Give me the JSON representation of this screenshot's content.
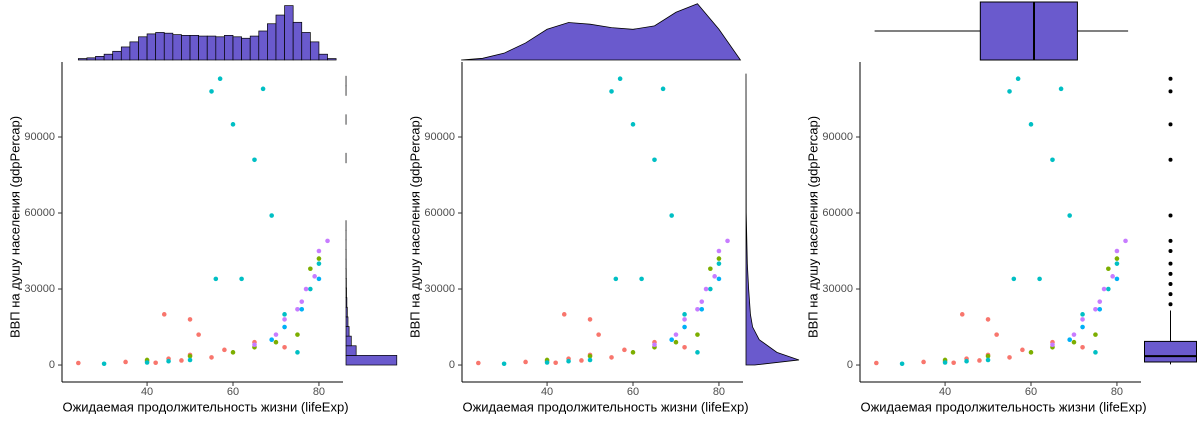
{
  "chart_data": [
    {
      "type": "scatter",
      "marginal": "histogram",
      "xlabel": "Ожидаемая продолжительность жизни (lifeExp)",
      "ylabel": "ВВП на душу населения (gdpPercap)",
      "xlim": [
        20.2,
        85.6
      ],
      "ylim": [
        -6700,
        119600
      ],
      "xticks": [
        40,
        60,
        80
      ],
      "yticks": [
        0,
        30000,
        60000,
        90000
      ],
      "series": [
        {
          "color": "#F8766D",
          "x": [
            24,
            35,
            40,
            42,
            45,
            48,
            50,
            52,
            55,
            58,
            65,
            72,
            44,
            50
          ],
          "y": [
            800,
            1200,
            1500,
            900,
            2500,
            1800,
            4000,
            12000,
            3000,
            6000,
            9000,
            7000,
            20000,
            18000
          ]
        },
        {
          "color": "#7CAE00",
          "x": [
            40,
            50,
            60,
            65,
            70,
            75,
            78,
            80
          ],
          "y": [
            2000,
            3500,
            5000,
            7000,
            9000,
            12000,
            38000,
            42000
          ]
        },
        {
          "color": "#00BFC4",
          "x": [
            30,
            40,
            45,
            55,
            57,
            60,
            65,
            67,
            69,
            56,
            62,
            72,
            78,
            50,
            75,
            80
          ],
          "y": [
            500,
            1000,
            1500,
            108000,
            113000,
            95000,
            81000,
            109000,
            59000,
            34000,
            34000,
            20000,
            30000,
            2000,
            5000,
            40000
          ]
        },
        {
          "color": "#C77CFF",
          "x": [
            65,
            70,
            72,
            75,
            77,
            79,
            80,
            82,
            76
          ],
          "y": [
            8000,
            12000,
            18000,
            22000,
            30000,
            35000,
            45000,
            49000,
            25000
          ]
        },
        {
          "color": "#00B0F6",
          "x": [
            69,
            72,
            76,
            80
          ],
          "y": [
            10000,
            15000,
            22000,
            34000
          ]
        }
      ],
      "marginal_color": "#6A5ACD",
      "top": {
        "bins": [
          24,
          26,
          28,
          30,
          32,
          34,
          36,
          38,
          40,
          42,
          44,
          46,
          48,
          50,
          52,
          54,
          56,
          58,
          60,
          62,
          64,
          66,
          68,
          70,
          72,
          74,
          76,
          78,
          80,
          82,
          84
        ],
        "counts": [
          2,
          3,
          5,
          8,
          12,
          18,
          25,
          32,
          36,
          38,
          37,
          35,
          34,
          34,
          33,
          33,
          32,
          34,
          32,
          30,
          33,
          40,
          50,
          62,
          75,
          52,
          38,
          25,
          8,
          2
        ],
        "lim": [
          0,
          80
        ]
      },
      "right": {
        "bins": [
          0,
          3800,
          7600,
          11400,
          15200,
          19000,
          22800,
          26600,
          30400,
          34200,
          38000,
          41800,
          45600,
          49400,
          53200,
          57000,
          60800,
          64600,
          68400,
          72200,
          76000,
          79800,
          83600,
          87400,
          91200,
          95000,
          98800,
          102600,
          106400,
          110200,
          114000
        ],
        "counts": [
          1150,
          230,
          120,
          70,
          45,
          30,
          20,
          12,
          8,
          5,
          3,
          2,
          1,
          1,
          1,
          0,
          0,
          0,
          0,
          0,
          0,
          1,
          0,
          0,
          0,
          1,
          0,
          0,
          1,
          1
        ],
        "lim": [
          0,
          1200
        ]
      }
    },
    {
      "type": "scatter",
      "marginal": "density",
      "xlabel": "Ожидаемая продолжительность жизни (lifeExp)",
      "ylabel": "ВВП на душу населения (gdpPercap)",
      "xlim": [
        20.2,
        85.6
      ],
      "ylim": [
        -6700,
        119600
      ],
      "xticks": [
        40,
        60,
        80
      ],
      "yticks": [
        0,
        30000,
        60000,
        90000
      ],
      "series": [
        {
          "color": "#F8766D",
          "x": [
            24,
            35,
            40,
            42,
            45,
            48,
            50,
            52,
            55,
            58,
            65,
            72,
            44,
            50
          ],
          "y": [
            800,
            1200,
            1500,
            900,
            2500,
            1800,
            4000,
            12000,
            3000,
            6000,
            9000,
            7000,
            20000,
            18000
          ]
        },
        {
          "color": "#7CAE00",
          "x": [
            40,
            50,
            60,
            65,
            70,
            75,
            78,
            80
          ],
          "y": [
            2000,
            3500,
            5000,
            7000,
            9000,
            12000,
            38000,
            42000
          ]
        },
        {
          "color": "#00BFC4",
          "x": [
            30,
            40,
            45,
            55,
            57,
            60,
            65,
            67,
            69,
            56,
            62,
            72,
            78,
            50,
            75,
            80
          ],
          "y": [
            500,
            1000,
            1500,
            108000,
            113000,
            95000,
            81000,
            109000,
            59000,
            34000,
            34000,
            20000,
            30000,
            2000,
            5000,
            40000
          ]
        },
        {
          "color": "#C77CFF",
          "x": [
            65,
            70,
            72,
            75,
            77,
            79,
            80,
            82,
            76
          ],
          "y": [
            8000,
            12000,
            18000,
            22000,
            30000,
            35000,
            45000,
            49000,
            25000
          ]
        },
        {
          "color": "#00B0F6",
          "x": [
            69,
            72,
            76,
            80
          ],
          "y": [
            10000,
            15000,
            22000,
            34000
          ]
        }
      ],
      "marginal_color": "#6A5ACD",
      "top": {
        "x": [
          20,
          25,
          30,
          35,
          40,
          45,
          50,
          55,
          60,
          65,
          70,
          75,
          80,
          85
        ],
        "density": [
          0,
          0.001,
          0.004,
          0.01,
          0.018,
          0.022,
          0.021,
          0.019,
          0.018,
          0.02,
          0.028,
          0.033,
          0.018,
          0
        ],
        "lim": [
          0,
          0.034
        ]
      },
      "right": {
        "x": [
          0,
          2000,
          5000,
          10000,
          15000,
          20000,
          30000,
          40000,
          60000,
          90000,
          115000
        ],
        "density": [
          2e-05,
          0.00012,
          7e-05,
          3e-05,
          1.5e-05,
          1e-05,
          6e-06,
          3e-06,
          5e-07,
          2e-07,
          0
        ],
        "lim": [
          0,
          0.00012
        ]
      }
    },
    {
      "type": "scatter",
      "marginal": "boxplot",
      "xlabel": "Ожидаемая продолжительность жизни (lifeExp)",
      "ylabel": "ВВП на душу населения (gdpPercap)",
      "xlim": [
        20.2,
        85.6
      ],
      "ylim": [
        -6700,
        119600
      ],
      "xticks": [
        40,
        60,
        80
      ],
      "yticks": [
        0,
        30000,
        60000,
        90000
      ],
      "series": [
        {
          "color": "#F8766D",
          "x": [
            24,
            35,
            40,
            42,
            45,
            48,
            50,
            52,
            55,
            58,
            65,
            72,
            44,
            50
          ],
          "y": [
            800,
            1200,
            1500,
            900,
            2500,
            1800,
            4000,
            12000,
            3000,
            6000,
            9000,
            7000,
            20000,
            18000
          ]
        },
        {
          "color": "#7CAE00",
          "x": [
            40,
            50,
            60,
            65,
            70,
            75,
            78,
            80
          ],
          "y": [
            2000,
            3500,
            5000,
            7000,
            9000,
            12000,
            38000,
            42000
          ]
        },
        {
          "color": "#00BFC4",
          "x": [
            30,
            40,
            45,
            55,
            57,
            60,
            65,
            67,
            69,
            56,
            62,
            72,
            78,
            50,
            75,
            80
          ],
          "y": [
            500,
            1000,
            1500,
            108000,
            113000,
            95000,
            81000,
            109000,
            59000,
            34000,
            34000,
            20000,
            30000,
            2000,
            5000,
            40000
          ]
        },
        {
          "color": "#C77CFF",
          "x": [
            65,
            70,
            72,
            75,
            77,
            79,
            80,
            82,
            76
          ],
          "y": [
            8000,
            12000,
            18000,
            22000,
            30000,
            35000,
            45000,
            49000,
            25000
          ]
        },
        {
          "color": "#00B0F6",
          "x": [
            69,
            72,
            76,
            80
          ],
          "y": [
            10000,
            15000,
            22000,
            34000
          ]
        }
      ],
      "marginal_color": "#6A5ACD",
      "top": {
        "min": 23.6,
        "q1": 48.2,
        "median": 60.7,
        "q3": 70.8,
        "max": 82.6,
        "outliers": []
      },
      "right": {
        "min": 241,
        "q1": 1202,
        "median": 3532,
        "q3": 9325,
        "max": 21500,
        "outliers": [
          24000,
          28000,
          32000,
          36000,
          40000,
          45000,
          49000,
          59000,
          81000,
          95000,
          108000,
          113000
        ]
      }
    }
  ]
}
